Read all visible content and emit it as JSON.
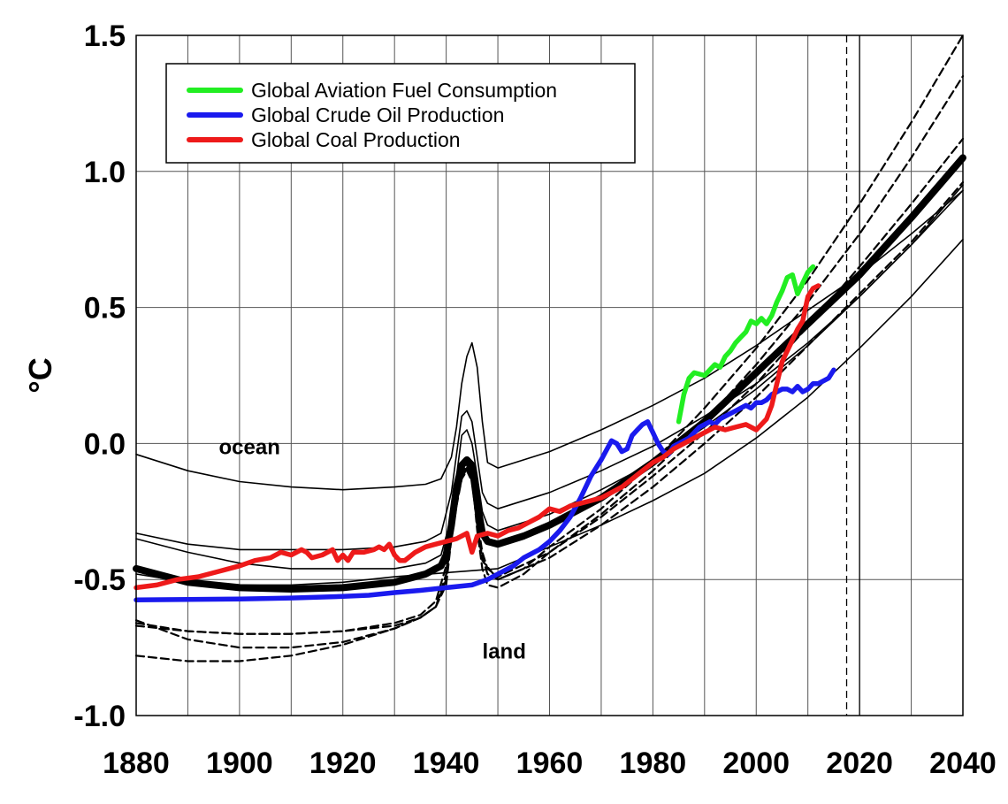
{
  "chart_data": {
    "type": "line",
    "ylabel": "°C",
    "xlim": [
      1880,
      2040
    ],
    "ylim": [
      -1.0,
      1.5
    ],
    "x_ticks": [
      "1880",
      "1900",
      "1920",
      "1940",
      "1960",
      "1980",
      "2000",
      "2020",
      "2040"
    ],
    "y_ticks": [
      "1.5",
      "1.0",
      "0.5",
      "0.0",
      "-0.5",
      "-1.0"
    ],
    "grid": true,
    "legend_position": "top-left",
    "annotations": [
      {
        "text": "ocean",
        "x": 1896,
        "y": -0.04
      },
      {
        "text": "land",
        "x": 1947,
        "y": -0.79
      }
    ],
    "vertical_reference_lines": [
      {
        "x": 2017.5,
        "style": "dashed"
      },
      {
        "x": 2020,
        "style": "solid"
      }
    ],
    "series": [
      {
        "name": "Global Aviation Fuel Consumption",
        "color": "#22ee22",
        "style": "thick",
        "x": [
          1985,
          1986,
          1987,
          1988,
          1990,
          1991,
          1992,
          1993,
          1994,
          1995,
          1996,
          1997,
          1998,
          1999,
          2000,
          2001,
          2002,
          2003,
          2004,
          2005,
          2006,
          2007,
          2008,
          2009,
          2010,
          2011
        ],
        "y": [
          0.08,
          0.18,
          0.24,
          0.26,
          0.25,
          0.27,
          0.29,
          0.28,
          0.32,
          0.34,
          0.37,
          0.39,
          0.41,
          0.45,
          0.44,
          0.46,
          0.44,
          0.47,
          0.52,
          0.56,
          0.61,
          0.62,
          0.55,
          0.59,
          0.63,
          0.65
        ]
      },
      {
        "name": "Global Crude Oil Production",
        "color": "#1a1aee",
        "style": "thick",
        "x": [
          1880,
          1890,
          1900,
          1910,
          1920,
          1925,
          1930,
          1935,
          1940,
          1945,
          1948,
          1950,
          1953,
          1955,
          1958,
          1960,
          1962,
          1964,
          1966,
          1968,
          1970,
          1972,
          1973,
          1974,
          1975,
          1976,
          1977,
          1978,
          1979,
          1980,
          1981,
          1982,
          1983,
          1984,
          1985,
          1986,
          1987,
          1988,
          1989,
          1990,
          1991,
          1992,
          1993,
          1994,
          1995,
          1996,
          1997,
          1998,
          1999,
          2000,
          2001,
          2002,
          2003,
          2004,
          2005,
          2006,
          2007,
          2008,
          2009,
          2010,
          2011,
          2012,
          2013,
          2014,
          2015
        ],
        "y": [
          -0.575,
          -0.573,
          -0.572,
          -0.568,
          -0.562,
          -0.558,
          -0.548,
          -0.54,
          -0.53,
          -0.52,
          -0.5,
          -0.48,
          -0.45,
          -0.42,
          -0.39,
          -0.36,
          -0.32,
          -0.27,
          -0.2,
          -0.12,
          -0.06,
          0.01,
          0.0,
          -0.03,
          -0.02,
          0.03,
          0.05,
          0.07,
          0.08,
          0.04,
          0.0,
          -0.03,
          -0.04,
          -0.01,
          0.0,
          0.01,
          0.02,
          0.04,
          0.06,
          0.07,
          0.08,
          0.07,
          0.09,
          0.1,
          0.11,
          0.12,
          0.13,
          0.14,
          0.13,
          0.15,
          0.15,
          0.16,
          0.18,
          0.19,
          0.2,
          0.2,
          0.19,
          0.21,
          0.19,
          0.2,
          0.22,
          0.22,
          0.23,
          0.24,
          0.27
        ]
      },
      {
        "name": "Global Coal Production",
        "color": "#ee1a1a",
        "style": "thick",
        "x": [
          1880,
          1884,
          1888,
          1892,
          1896,
          1900,
          1903,
          1906,
          1908,
          1910,
          1912,
          1913,
          1914,
          1916,
          1918,
          1919,
          1920,
          1921,
          1922,
          1924,
          1926,
          1927,
          1928,
          1929,
          1930,
          1931,
          1932,
          1934,
          1936,
          1938,
          1940,
          1942,
          1944,
          1945,
          1946,
          1948,
          1950,
          1952,
          1954,
          1956,
          1958,
          1960,
          1962,
          1964,
          1966,
          1968,
          1970,
          1972,
          1974,
          1976,
          1978,
          1980,
          1982,
          1984,
          1986,
          1988,
          1990,
          1992,
          1994,
          1996,
          1998,
          2000,
          2002,
          2003,
          2004,
          2005,
          2006,
          2007,
          2008,
          2009,
          2010,
          2011,
          2012
        ],
        "y": [
          -0.53,
          -0.52,
          -0.5,
          -0.49,
          -0.47,
          -0.45,
          -0.43,
          -0.42,
          -0.4,
          -0.41,
          -0.39,
          -0.4,
          -0.42,
          -0.41,
          -0.39,
          -0.43,
          -0.41,
          -0.43,
          -0.4,
          -0.4,
          -0.39,
          -0.38,
          -0.39,
          -0.37,
          -0.41,
          -0.43,
          -0.43,
          -0.4,
          -0.38,
          -0.37,
          -0.36,
          -0.35,
          -0.33,
          -0.4,
          -0.34,
          -0.33,
          -0.34,
          -0.32,
          -0.31,
          -0.29,
          -0.27,
          -0.24,
          -0.25,
          -0.23,
          -0.22,
          -0.21,
          -0.2,
          -0.18,
          -0.16,
          -0.13,
          -0.1,
          -0.07,
          -0.05,
          -0.02,
          0.0,
          0.02,
          0.04,
          0.06,
          0.05,
          0.06,
          0.07,
          0.05,
          0.09,
          0.14,
          0.22,
          0.3,
          0.34,
          0.38,
          0.42,
          0.45,
          0.54,
          0.57,
          0.58
        ]
      },
      {
        "style": "thin",
        "x": [
          1880,
          1890,
          1900,
          1910,
          1920,
          1930,
          1936,
          1939,
          1941,
          1942,
          1943,
          1944,
          1945,
          1946,
          1947,
          1948,
          1950,
          1960,
          1970,
          1980,
          1990,
          2000,
          2010,
          2020,
          2030,
          2040
        ],
        "y": [
          -0.04,
          -0.1,
          -0.14,
          -0.16,
          -0.17,
          -0.16,
          -0.15,
          -0.13,
          -0.05,
          0.06,
          0.22,
          0.32,
          0.37,
          0.28,
          0.08,
          -0.07,
          -0.09,
          -0.03,
          0.05,
          0.14,
          0.24,
          0.36,
          0.49,
          0.62,
          0.77,
          0.93
        ]
      },
      {
        "style": "thin",
        "x": [
          1880,
          1890,
          1900,
          1910,
          1920,
          1930,
          1936,
          1939,
          1941,
          1942,
          1943,
          1944,
          1945,
          1946,
          1947,
          1948,
          1950,
          1960,
          1970,
          1980,
          1990,
          2000,
          2010,
          2020,
          2030,
          2040
        ],
        "y": [
          -0.33,
          -0.37,
          -0.39,
          -0.39,
          -0.39,
          -0.38,
          -0.36,
          -0.33,
          -0.18,
          -0.04,
          0.1,
          0.12,
          0.08,
          -0.05,
          -0.18,
          -0.22,
          -0.24,
          -0.18,
          -0.1,
          -0.01,
          0.1,
          0.22,
          0.37,
          0.54,
          0.73,
          0.95
        ]
      },
      {
        "style": "thin",
        "x": [
          1880,
          1890,
          1900,
          1910,
          1920,
          1930,
          1936,
          1939,
          1941,
          1942,
          1943,
          1944,
          1945,
          1946,
          1947,
          1948,
          1950,
          1960,
          1970,
          1980,
          1990,
          2000,
          2010,
          2020,
          2030,
          2040
        ],
        "y": [
          -0.35,
          -0.4,
          -0.44,
          -0.46,
          -0.46,
          -0.46,
          -0.44,
          -0.41,
          -0.27,
          -0.12,
          0.03,
          0.05,
          0.0,
          -0.12,
          -0.25,
          -0.3,
          -0.32,
          -0.26,
          -0.17,
          -0.07,
          0.06,
          0.2,
          0.36,
          0.54,
          0.73,
          0.93
        ]
      },
      {
        "style": "thin",
        "x": [
          1880,
          1890,
          1900,
          1910,
          1920,
          1930,
          1950,
          1960,
          1970,
          1980,
          1990,
          2000,
          2010,
          2020,
          2030,
          2040
        ],
        "y": [
          -0.48,
          -0.51,
          -0.52,
          -0.52,
          -0.51,
          -0.49,
          -0.46,
          -0.38,
          -0.3,
          -0.21,
          -0.11,
          0.02,
          0.17,
          0.35,
          0.54,
          0.75
        ]
      },
      {
        "style": "thick-black",
        "x": [
          1880,
          1890,
          1900,
          1910,
          1920,
          1930,
          1936,
          1939,
          1940,
          1941,
          1942,
          1943,
          1944,
          1945,
          1946,
          1947,
          1948,
          1950,
          1955,
          1960,
          1970,
          1980,
          1990,
          2000,
          2010,
          2020,
          2030,
          2040
        ],
        "y": [
          -0.46,
          -0.51,
          -0.53,
          -0.535,
          -0.53,
          -0.51,
          -0.48,
          -0.45,
          -0.41,
          -0.3,
          -0.16,
          -0.08,
          -0.06,
          -0.08,
          -0.22,
          -0.33,
          -0.36,
          -0.37,
          -0.34,
          -0.3,
          -0.2,
          -0.07,
          0.08,
          0.26,
          0.44,
          0.62,
          0.83,
          1.05
        ]
      },
      {
        "style": "dashed",
        "x": [
          1880,
          1890,
          1900,
          1910,
          1920,
          1930,
          1935,
          1938,
          1940,
          1941,
          1942,
          1943,
          1944,
          1945,
          1946,
          1947,
          1950,
          1955,
          1960,
          1970,
          1980,
          1990,
          2000,
          2010,
          2020,
          2030,
          2040
        ],
        "y": [
          -0.78,
          -0.8,
          -0.8,
          -0.78,
          -0.74,
          -0.68,
          -0.64,
          -0.6,
          -0.52,
          -0.35,
          -0.22,
          -0.13,
          -0.09,
          -0.12,
          -0.3,
          -0.43,
          -0.5,
          -0.46,
          -0.38,
          -0.24,
          -0.07,
          0.13,
          0.35,
          0.6,
          0.88,
          1.18,
          1.5
        ]
      },
      {
        "style": "dashed",
        "x": [
          1880,
          1890,
          1900,
          1910,
          1920,
          1930,
          1935,
          1938,
          1940,
          1941,
          1942,
          1943,
          1944,
          1945,
          1946,
          1947,
          1948,
          1950,
          1955,
          1960,
          1970,
          1980,
          1990,
          2000,
          2010,
          2020,
          2030,
          2040
        ],
        "y": [
          -0.65,
          -0.72,
          -0.75,
          -0.75,
          -0.73,
          -0.68,
          -0.64,
          -0.6,
          -0.5,
          -0.33,
          -0.2,
          -0.11,
          -0.08,
          -0.12,
          -0.32,
          -0.46,
          -0.52,
          -0.53,
          -0.48,
          -0.4,
          -0.26,
          -0.1,
          0.08,
          0.29,
          0.52,
          0.77,
          1.05,
          1.35
        ]
      },
      {
        "style": "dashed",
        "x": [
          1880,
          1890,
          1900,
          1910,
          1920,
          1930,
          1935,
          1938,
          1940,
          1942,
          1943,
          1944,
          1945,
          1946,
          1947,
          1948,
          1950,
          1960,
          1970,
          1980,
          1990,
          2000,
          2010,
          2020,
          2030,
          2040
        ],
        "y": [
          -0.67,
          -0.69,
          -0.7,
          -0.7,
          -0.69,
          -0.66,
          -0.63,
          -0.58,
          -0.45,
          -0.2,
          -0.11,
          -0.09,
          -0.13,
          -0.28,
          -0.4,
          -0.46,
          -0.49,
          -0.4,
          -0.27,
          -0.12,
          0.04,
          0.22,
          0.43,
          0.65,
          0.88,
          1.12
        ]
      },
      {
        "style": "dashed",
        "x": [
          1880,
          1890,
          1900,
          1910,
          1920,
          1930,
          1935,
          1938,
          1940,
          1942,
          1943,
          1944,
          1945,
          1946,
          1947,
          1948,
          1950,
          1960,
          1970,
          1980,
          1990,
          2000,
          2010,
          2020,
          2030,
          2040
        ],
        "y": [
          -0.66,
          -0.69,
          -0.7,
          -0.7,
          -0.69,
          -0.67,
          -0.64,
          -0.6,
          -0.48,
          -0.23,
          -0.13,
          -0.1,
          -0.14,
          -0.3,
          -0.42,
          -0.48,
          -0.5,
          -0.42,
          -0.3,
          -0.16,
          0.0,
          0.17,
          0.36,
          0.55,
          0.74,
          0.96
        ]
      }
    ]
  }
}
